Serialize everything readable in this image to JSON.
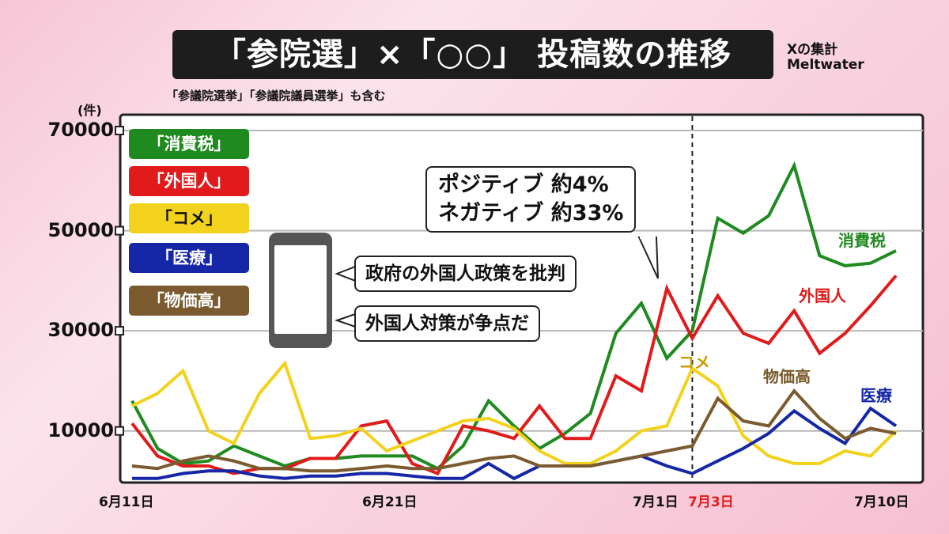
{
  "title": "「参院選」×「○○」 投稿数の推移",
  "source": [
    "Xの集計",
    "Meltwater"
  ],
  "note": "「参議院選挙」「参議院議員選挙」も含む",
  "unit": "(件)",
  "chart_data": {
    "type": "line",
    "y_ticks": [
      "70000",
      "50000",
      "30000",
      "10000"
    ],
    "ylim": [
      0,
      70000
    ],
    "grid": true,
    "x_labels": [
      "6月11日",
      "6月21日",
      "7月1日",
      "7月3日",
      "7月10日"
    ],
    "x": [
      "6/11",
      "6/12",
      "6/13",
      "6/14",
      "6/15",
      "6/16",
      "6/17",
      "6/18",
      "6/19",
      "6/20",
      "6/21",
      "6/22",
      "6/23",
      "6/24",
      "6/25",
      "6/26",
      "6/27",
      "6/28",
      "6/29",
      "6/30",
      "7/1",
      "7/2",
      "7/3",
      "7/4",
      "7/5",
      "7/6",
      "7/7",
      "7/8",
      "7/9",
      "7/10",
      "7/11"
    ],
    "marker_date": "7/3",
    "series": [
      {
        "name": "消費税",
        "color": "#1f8a1f",
        "values": [
          16000,
          6500,
          3500,
          4000,
          7000,
          5000,
          3000,
          4500,
          4500,
          5000,
          5000,
          5000,
          2500,
          7000,
          16000,
          11000,
          6500,
          9500,
          13500,
          29500,
          35500,
          24500,
          30000,
          52500,
          49500,
          53000,
          63000,
          45000,
          43000,
          43500,
          46000
        ]
      },
      {
        "name": "外国人",
        "color": "#e11b1b",
        "values": [
          11500,
          5000,
          3000,
          3000,
          1500,
          2500,
          2500,
          4500,
          4500,
          11000,
          12000,
          3500,
          1500,
          11000,
          10000,
          8500,
          15000,
          8500,
          8500,
          21000,
          18000,
          38500,
          28500,
          37000,
          29500,
          27500,
          34000,
          25500,
          29500,
          35000,
          41000
        ]
      },
      {
        "name": "コメ",
        "color": "#f2d21c",
        "values": [
          15000,
          17500,
          22000,
          10000,
          7500,
          17500,
          23500,
          8500,
          9000,
          10500,
          6000,
          8000,
          10000,
          12000,
          12500,
          10500,
          6000,
          3500,
          3500,
          6000,
          10000,
          11000,
          22500,
          19000,
          9000,
          5000,
          3500,
          3500,
          6000,
          5000,
          10000
        ]
      },
      {
        "name": "医療",
        "color": "#1527a7",
        "values": [
          500,
          500,
          1500,
          2000,
          2000,
          1000,
          500,
          1000,
          1000,
          1500,
          1500,
          1000,
          500,
          500,
          3500,
          500,
          3000,
          3000,
          3000,
          4000,
          5000,
          3000,
          1500,
          4000,
          6500,
          9500,
          14000,
          10500,
          7500,
          14500,
          11000
        ]
      },
      {
        "name": "物価高",
        "color": "#7a5a2e",
        "values": [
          3000,
          2500,
          4000,
          5000,
          4000,
          2500,
          2500,
          2000,
          2000,
          2500,
          3000,
          2500,
          2500,
          3500,
          4500,
          5000,
          3000,
          3000,
          3000,
          4000,
          5000,
          6000,
          7000,
          16500,
          12000,
          11000,
          18000,
          12500,
          8500,
          10500,
          9500
        ]
      }
    ]
  },
  "legend": [
    "「消費税」",
    "「外国人」",
    "「コメ」",
    "「医療」",
    "「物価高」"
  ],
  "series_labels": [
    "消費税",
    "外国人",
    "コメ",
    "物価高",
    "医療"
  ],
  "callouts": {
    "sentiment": [
      "ポジティブ 約4%",
      "ネガティブ 約33%"
    ],
    "post1": "政府の外国人政策を批判",
    "post2": "外国人対策が争点だ"
  }
}
